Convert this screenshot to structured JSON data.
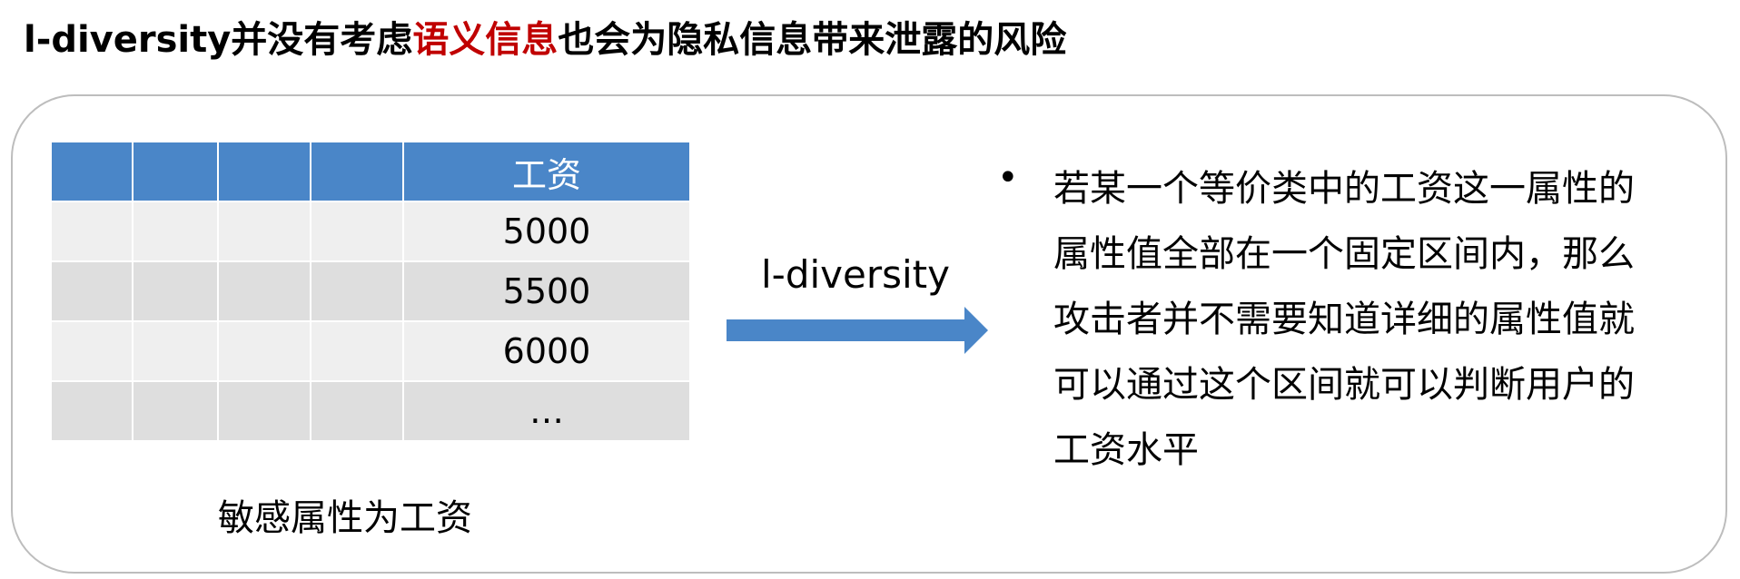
{
  "title": {
    "prefix": "l-diversity并没有考虑",
    "highlight": "语义信息",
    "suffix": "也会为隐私信息带来泄露的风险"
  },
  "table": {
    "headers": [
      "",
      "",
      "",
      "",
      "工资"
    ],
    "rows": [
      [
        "",
        "",
        "",
        "",
        "5000"
      ],
      [
        "",
        "",
        "",
        "",
        "5500"
      ],
      [
        "",
        "",
        "",
        "",
        "6000"
      ],
      [
        "",
        "",
        "",
        "",
        "…"
      ]
    ]
  },
  "caption": "敏感属性为工资",
  "arrow": {
    "label": "l-diversity"
  },
  "bullet": {
    "lines": [
      "若某一个等价类中的工资这一属性的",
      "属性值全部在一个固定区间内，那么",
      "攻击者并不需要知道详细的属性值就",
      "可以通过这个区间就可以判断用户的",
      "工资水平"
    ]
  },
  "colors": {
    "highlight": "#c00000",
    "table_header": "#4a86c8",
    "arrow": "#4a86c8"
  }
}
